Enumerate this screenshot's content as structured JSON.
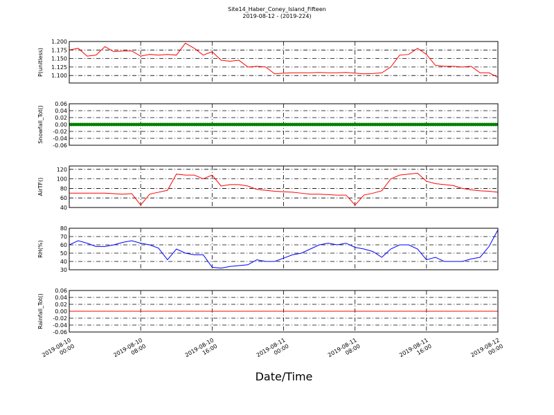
{
  "chart_data": {
    "type": "line",
    "title": "Site14_Haber_Coney_Island_Fifteen",
    "subtitle": "2019-08-12 - (2019-224)",
    "xlabel": "Date/Time",
    "grid": true,
    "xlim": [
      "2019-08-10 00:00",
      "2019-08-12 00:00"
    ],
    "xticks": [
      "2019-08-10 00:00",
      "2019-08-10 08:00",
      "2019-08-10 16:00",
      "2019-08-11 00:00",
      "2019-08-11 08:00",
      "2019-08-11 16:00",
      "2019-08-12 00:00"
    ],
    "x": [
      "2019-08-10 00:00",
      "2019-08-10 01:00",
      "2019-08-10 02:00",
      "2019-08-10 03:00",
      "2019-08-10 04:00",
      "2019-08-10 05:00",
      "2019-08-10 06:00",
      "2019-08-10 07:00",
      "2019-08-10 08:00",
      "2019-08-10 09:00",
      "2019-08-10 10:00",
      "2019-08-10 11:00",
      "2019-08-10 12:00",
      "2019-08-10 13:00",
      "2019-08-10 14:00",
      "2019-08-10 15:00",
      "2019-08-10 16:00",
      "2019-08-10 17:00",
      "2019-08-10 18:00",
      "2019-08-10 19:00",
      "2019-08-10 20:00",
      "2019-08-10 21:00",
      "2019-08-10 22:00",
      "2019-08-10 23:00",
      "2019-08-11 00:00",
      "2019-08-11 01:00",
      "2019-08-11 02:00",
      "2019-08-11 03:00",
      "2019-08-11 04:00",
      "2019-08-11 05:00",
      "2019-08-11 06:00",
      "2019-08-11 07:00",
      "2019-08-11 08:00",
      "2019-08-11 09:00",
      "2019-08-11 10:00",
      "2019-08-11 11:00",
      "2019-08-11 12:00",
      "2019-08-11 13:00",
      "2019-08-11 14:00",
      "2019-08-11 15:00",
      "2019-08-11 16:00",
      "2019-08-11 17:00",
      "2019-08-11 18:00",
      "2019-08-11 19:00",
      "2019-08-11 20:00",
      "2019-08-11 21:00",
      "2019-08-11 22:00",
      "2019-08-11 23:00",
      "2019-08-12 00:00"
    ],
    "panels": [
      {
        "ylabel": "P(unitless)",
        "ylim": [
          1.078,
          1.2
        ],
        "yticks": [
          {
            "value": 1.1,
            "label": "1.100"
          },
          1.125,
          {
            "value": 1.15,
            "label": "1.150"
          },
          1.175,
          {
            "value": 1.2,
            "label": "1.200"
          }
        ],
        "series": [
          {
            "color": "#ff0000",
            "style": "line",
            "values": [
              1.175,
              1.18,
              1.157,
              1.16,
              1.185,
              1.17,
              1.172,
              1.172,
              1.157,
              1.162,
              1.16,
              1.162,
              1.16,
              1.195,
              1.18,
              1.16,
              1.17,
              1.145,
              1.142,
              1.145,
              1.125,
              1.127,
              1.125,
              1.105,
              1.107,
              1.108,
              1.108,
              1.108,
              1.109,
              1.108,
              1.108,
              1.109,
              1.107,
              1.105,
              1.106,
              1.108,
              1.125,
              1.16,
              1.162,
              1.18,
              1.162,
              1.13,
              1.127,
              1.127,
              1.125,
              1.127,
              1.108,
              1.108,
              1.095
            ]
          }
        ]
      },
      {
        "ylabel": "Snowfall_Tot()",
        "ylim": [
          -0.06,
          0.06
        ],
        "yticks": [
          -0.06,
          -0.04,
          -0.02,
          {
            "value": 0,
            "label": "0.00"
          },
          0.02,
          0.04,
          0.06
        ],
        "series": [
          {
            "color": "#008000",
            "style": "markers",
            "values": [
              0,
              0,
              0,
              0,
              0,
              0,
              0,
              0,
              0,
              0,
              0,
              0,
              0,
              0,
              0,
              0,
              0,
              0,
              0,
              0,
              0,
              0,
              0,
              0,
              0,
              0,
              0,
              0,
              0,
              0,
              0,
              0,
              0,
              0,
              0,
              0,
              0,
              0,
              0,
              0,
              0,
              0,
              0,
              0,
              0,
              0,
              0,
              0,
              0
            ]
          }
        ]
      },
      {
        "ylabel": "AirTF()",
        "ylim": [
          40,
          127
        ],
        "yticks": [
          40,
          60,
          80,
          100,
          120
        ],
        "series": [
          {
            "color": "#ff0000",
            "style": "line",
            "values": [
              70,
              70,
              70,
              70,
              70,
              69,
              68,
              69,
              45,
              68,
              72,
              76,
              110,
              108,
              108,
              100,
              108,
              85,
              88,
              88,
              85,
              78,
              76,
              74,
              73,
              72,
              70,
              68,
              68,
              67,
              66,
              66,
              45,
              66,
              70,
              75,
              100,
              108,
              110,
              112,
              95,
              90,
              88,
              86,
              80,
              77,
              75,
              74,
              72
            ]
          }
        ]
      },
      {
        "ylabel": "RH(%)",
        "ylim": [
          30,
          80
        ],
        "yticks": [
          30,
          40,
          50,
          60,
          70,
          80
        ],
        "series": [
          {
            "color": "#0000ff",
            "style": "line",
            "values": [
              60,
              65,
              62,
              58,
              58,
              60,
              63,
              65,
              62,
              60,
              56,
              42,
              55,
              50,
              48,
              48,
              33,
              32,
              34,
              35,
              36,
              42,
              40,
              40,
              44,
              48,
              50,
              55,
              60,
              62,
              60,
              62,
              57,
              55,
              52,
              45,
              55,
              60,
              60,
              55,
              42,
              45,
              40,
              40,
              40,
              43,
              45,
              58,
              78
            ]
          }
        ]
      },
      {
        "ylabel": "Rainfall_Tot()",
        "ylim": [
          -0.06,
          0.06
        ],
        "yticks": [
          -0.06,
          -0.04,
          -0.02,
          {
            "value": 0,
            "label": "0.00"
          },
          0.02,
          0.04,
          0.06
        ],
        "series": [
          {
            "color": "#ff0000",
            "style": "line",
            "values": [
              0,
              0,
              0,
              0,
              0,
              0,
              0,
              0,
              0,
              0,
              0,
              0,
              0,
              0,
              0,
              0,
              0,
              0,
              0,
              0,
              0,
              0,
              0,
              0,
              0,
              0,
              0,
              0,
              0,
              0,
              0,
              0,
              0,
              0,
              0,
              0,
              0,
              0,
              0,
              0,
              0,
              0,
              0,
              0,
              0,
              0,
              0,
              0,
              0
            ]
          }
        ]
      }
    ]
  }
}
